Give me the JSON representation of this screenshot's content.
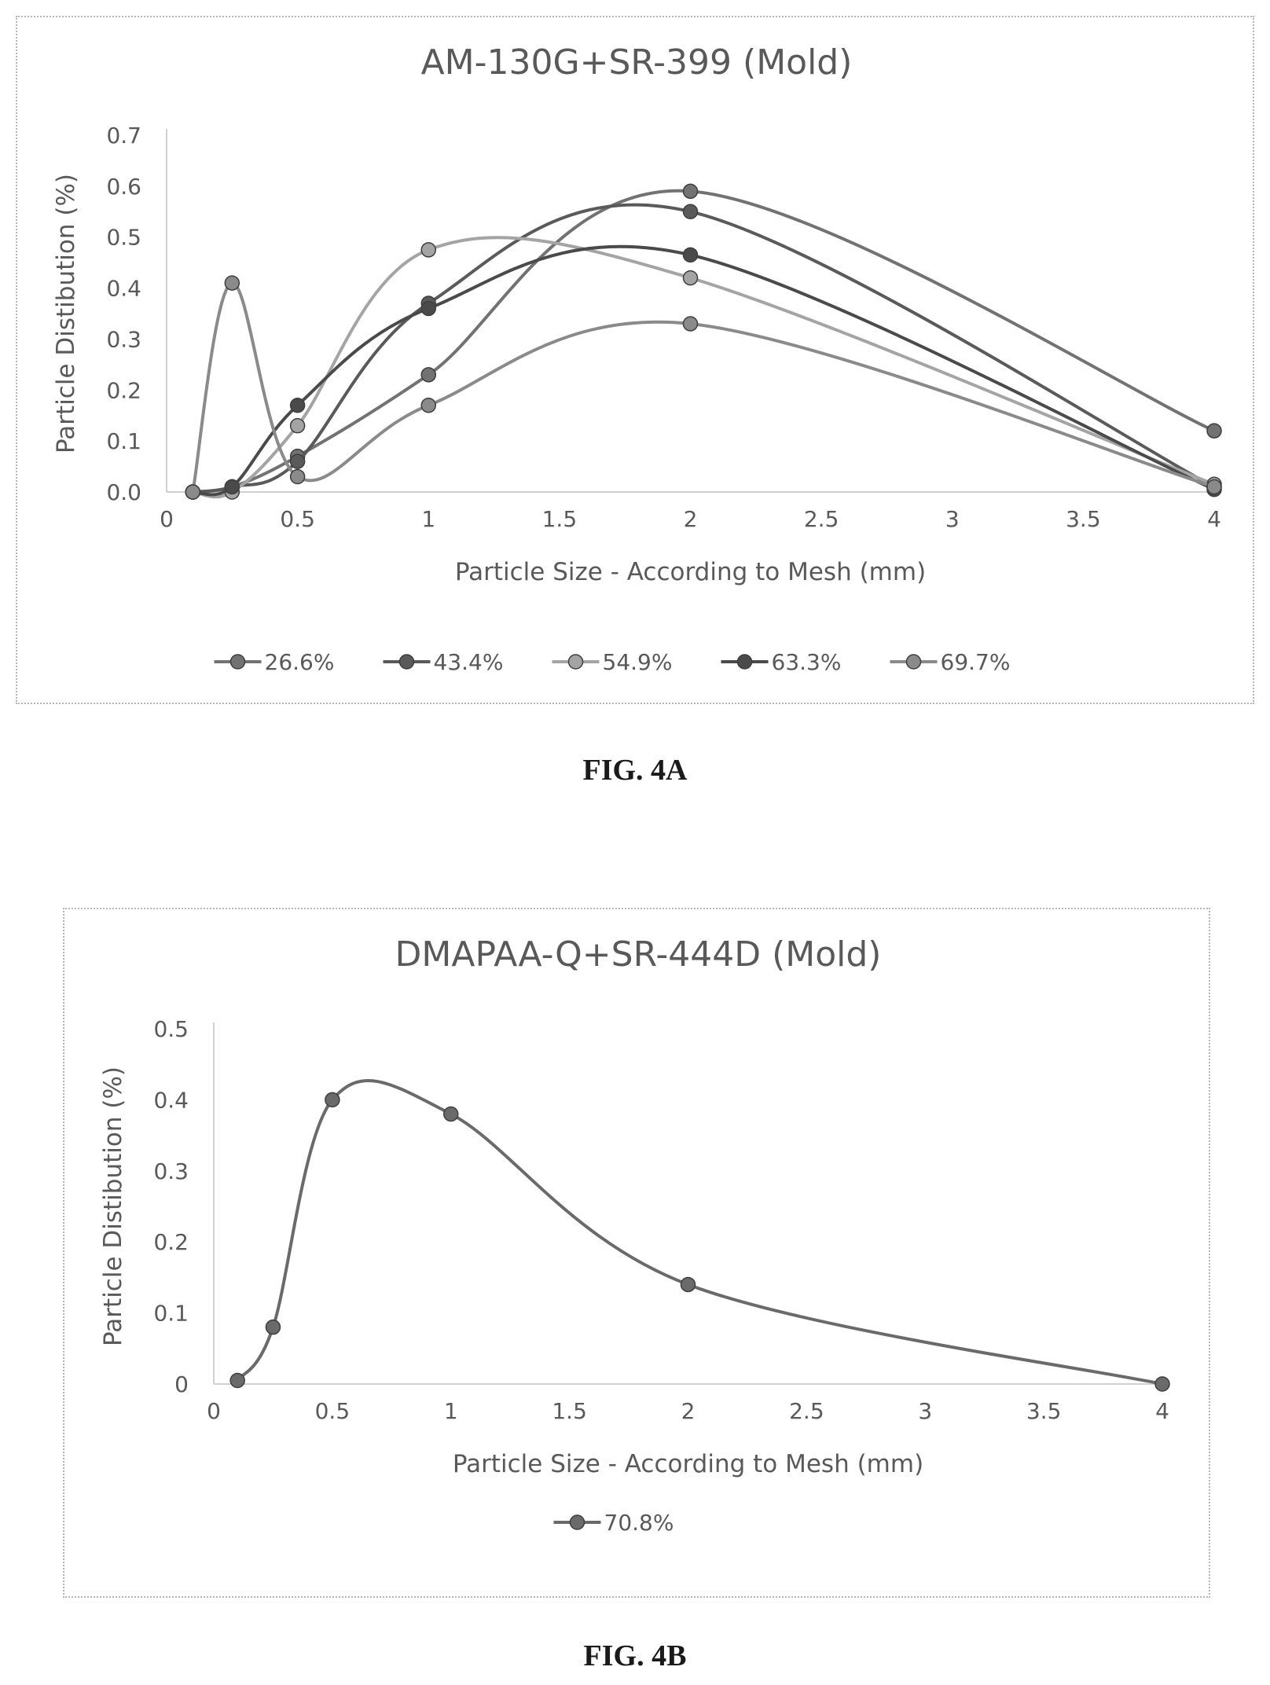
{
  "figures": [
    {
      "caption": "FIG. 4A"
    },
    {
      "caption": "FIG. 4B"
    }
  ],
  "chart_data": [
    {
      "type": "line",
      "title": "AM-130G+SR-399 (Mold)",
      "xlabel": "Particle Size - According to Mesh (mm)",
      "ylabel": "Particle Distibution (%)",
      "xlim": [
        0,
        4
      ],
      "ylim": [
        0,
        0.7
      ],
      "x_ticks": [
        "0",
        "0.5",
        "1",
        "1.5",
        "2",
        "2.5",
        "3",
        "3.5",
        "4"
      ],
      "y_ticks": [
        "0.0",
        "0.1",
        "0.2",
        "0.3",
        "0.4",
        "0.5",
        "0.6",
        "0.7"
      ],
      "grid": false,
      "smooth": true,
      "legend_position": "bottom",
      "x": [
        0.1,
        0.25,
        0.5,
        1,
        2,
        4
      ],
      "series": [
        {
          "name": "26.6%",
          "values": [
            0.0,
            0.01,
            0.07,
            0.23,
            0.59,
            0.12
          ],
          "color": "#727272"
        },
        {
          "name": "43.4%",
          "values": [
            0.0,
            0.01,
            0.06,
            0.37,
            0.55,
            0.01
          ],
          "color": "#5a5a5a"
        },
        {
          "name": "54.9%",
          "values": [
            0.0,
            0.0,
            0.13,
            0.475,
            0.42,
            0.015
          ],
          "color": "#a4a4a4"
        },
        {
          "name": "63.3%",
          "values": [
            0.0,
            0.01,
            0.17,
            0.36,
            0.465,
            0.005
          ],
          "color": "#4a4a4a"
        },
        {
          "name": "69.7%",
          "values": [
            0.0,
            0.41,
            0.03,
            0.17,
            0.33,
            0.01
          ],
          "color": "#8a8a8a"
        }
      ]
    },
    {
      "type": "line",
      "title": "DMAPAA-Q+SR-444D (Mold)",
      "xlabel": "Particle Size - According to Mesh (mm)",
      "ylabel": "Particle Distibution (%)",
      "xlim": [
        0,
        4
      ],
      "ylim": [
        0,
        0.5
      ],
      "x_ticks": [
        "0",
        "0.5",
        "1",
        "1.5",
        "2",
        "2.5",
        "3",
        "3.5",
        "4"
      ],
      "y_ticks": [
        "0",
        "0.1",
        "0.2",
        "0.3",
        "0.4",
        "0.5"
      ],
      "grid": false,
      "smooth": true,
      "legend_position": "bottom",
      "x": [
        0.1,
        0.25,
        0.5,
        1,
        2,
        4
      ],
      "series": [
        {
          "name": "70.8%",
          "values": [
            0.005,
            0.08,
            0.4,
            0.38,
            0.14,
            0.0
          ],
          "color": "#6a6a6a"
        }
      ]
    }
  ]
}
